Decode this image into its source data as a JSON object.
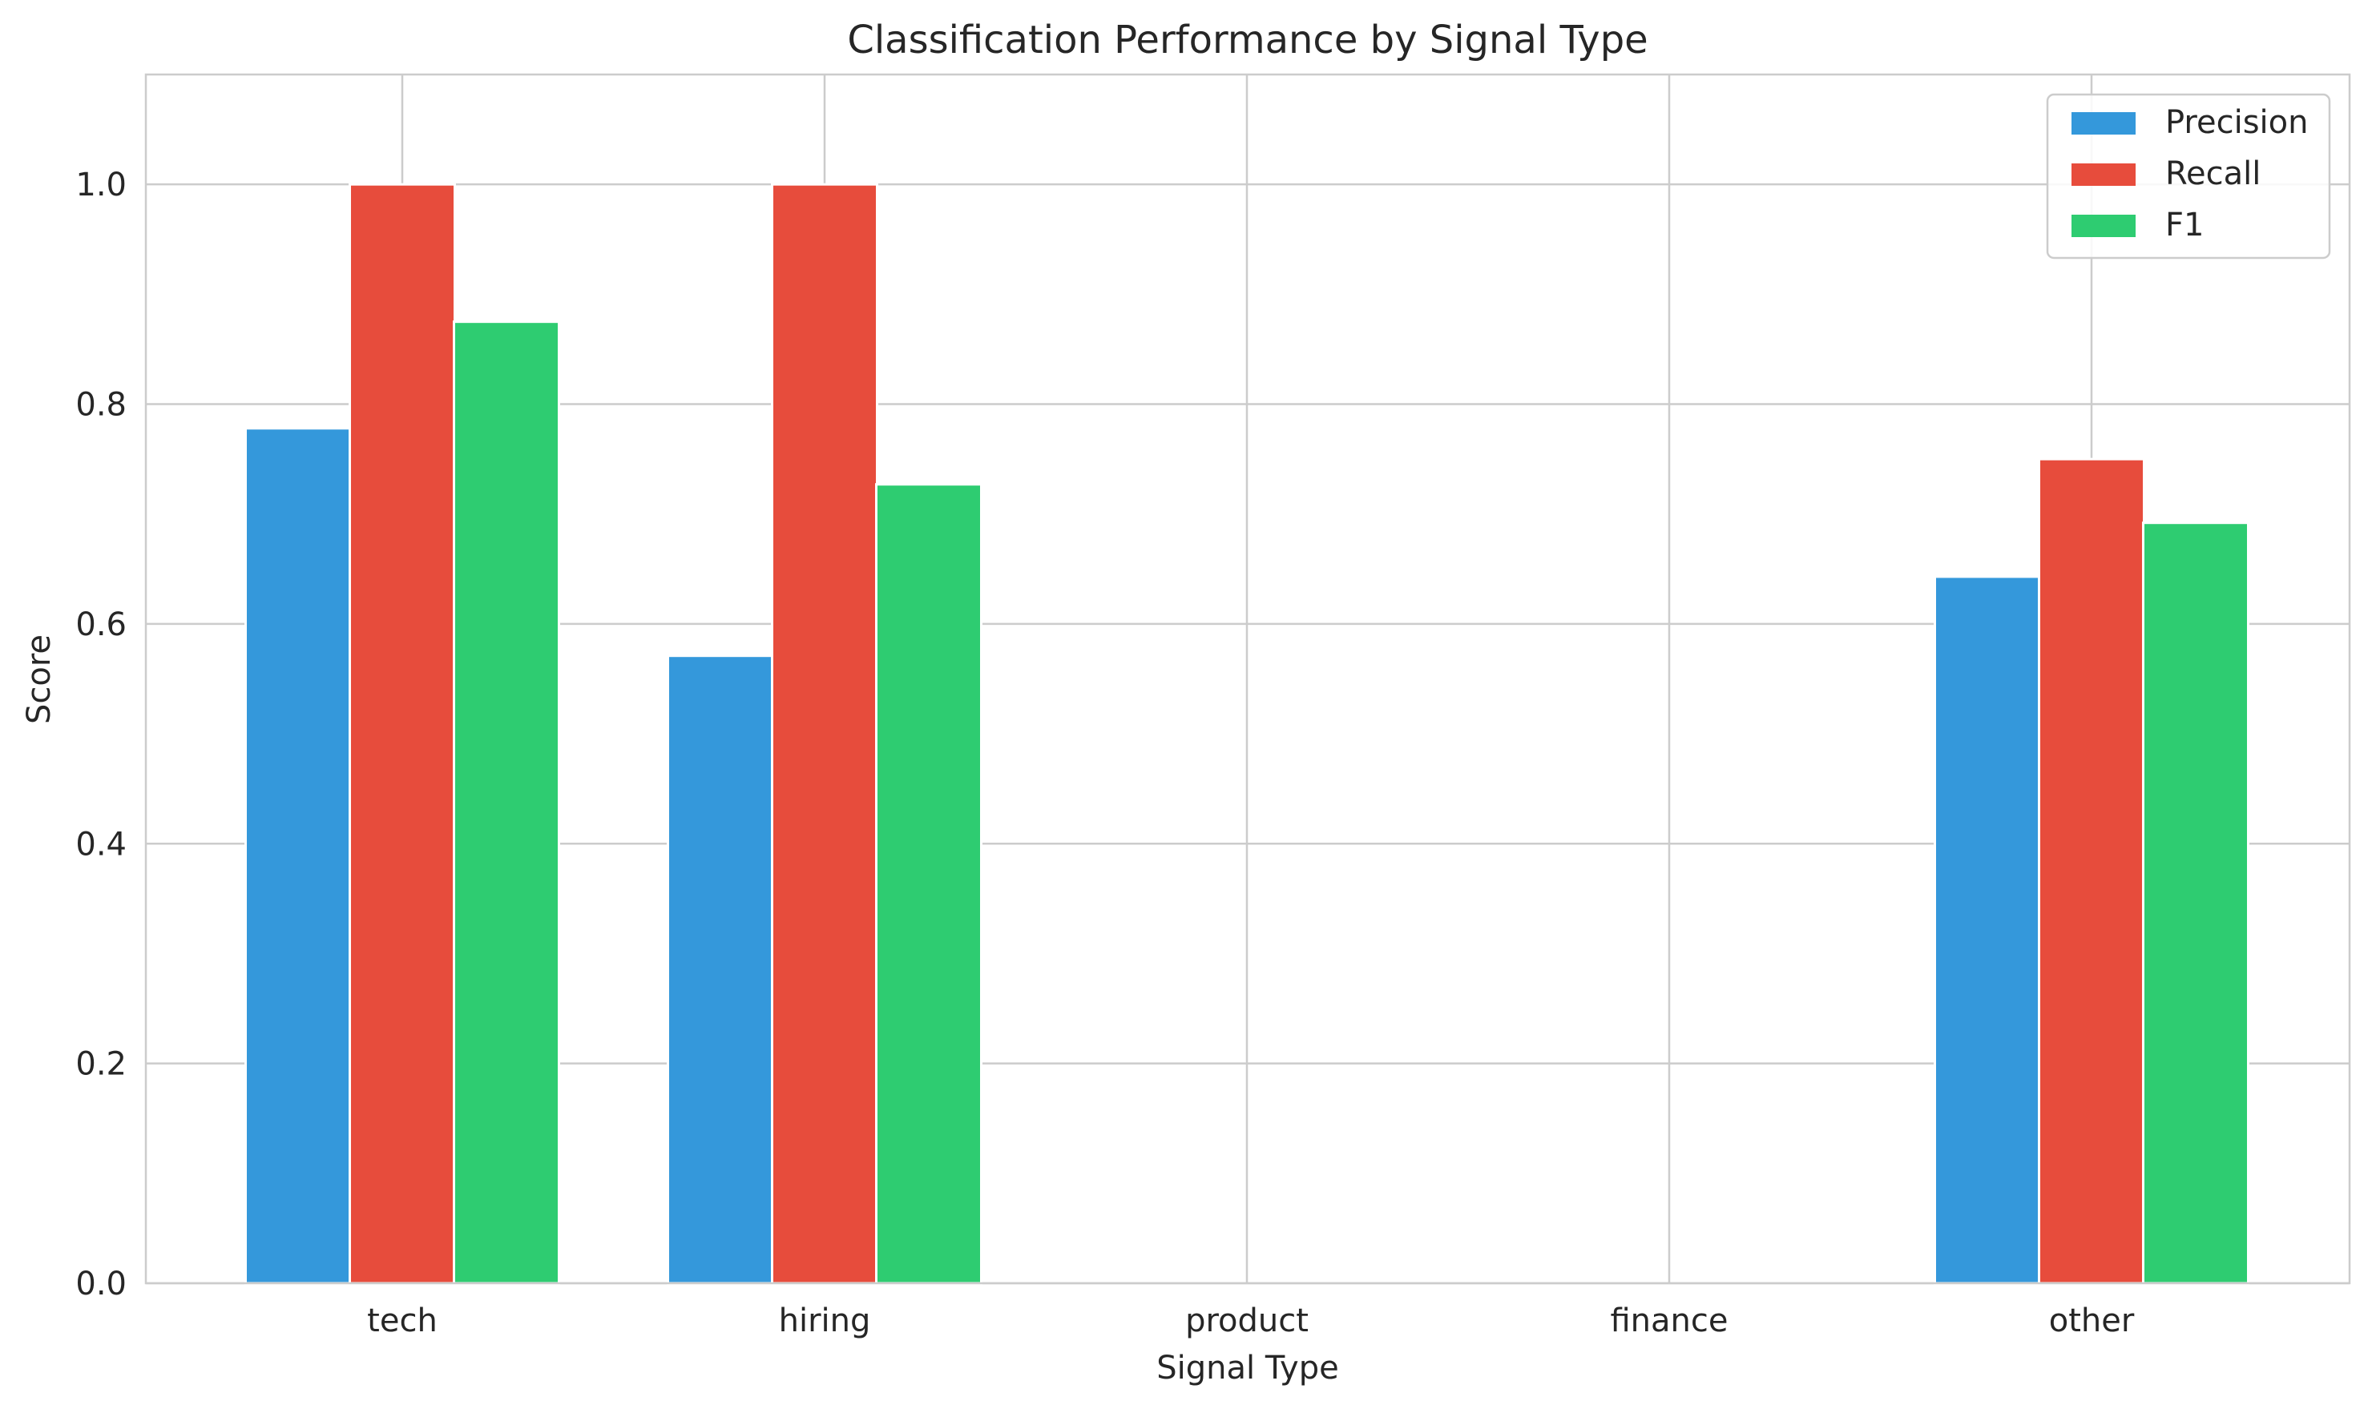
{
  "chart_data": {
    "type": "bar",
    "title": "Classification Performance by Signal Type",
    "xlabel": "Signal Type",
    "ylabel": "Score",
    "categories": [
      "tech",
      "hiring",
      "product",
      "finance",
      "other"
    ],
    "series": [
      {
        "name": "Precision",
        "color": "#3498db",
        "values": [
          0.778,
          0.571,
          0.0,
          0.0,
          0.643
        ]
      },
      {
        "name": "Recall",
        "color": "#e74c3c",
        "values": [
          1.0,
          1.0,
          0.0,
          0.0,
          0.75
        ]
      },
      {
        "name": "F1",
        "color": "#2ecc71",
        "values": [
          0.875,
          0.727,
          0.0,
          0.0,
          0.692
        ]
      }
    ],
    "ylim": [
      0,
      1.1
    ],
    "yticks": [
      0.0,
      0.2,
      0.4,
      0.6,
      0.8,
      1.0
    ],
    "ytick_labels": [
      "0.0",
      "0.2",
      "0.4",
      "0.6",
      "0.8",
      "1.0"
    ],
    "grid": true,
    "legend_position": "top-right"
  }
}
